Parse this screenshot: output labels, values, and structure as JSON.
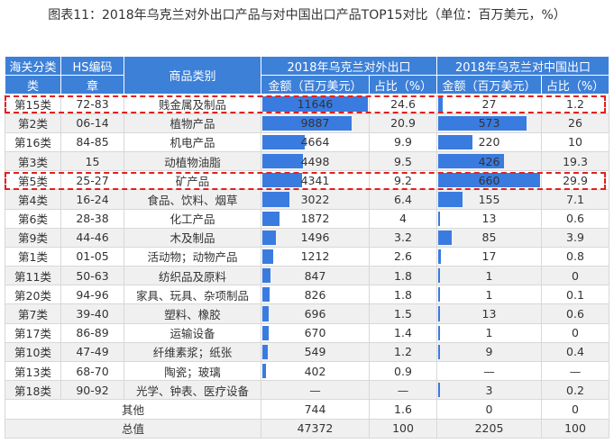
{
  "title": "图表11：2018年乌克兰对外出口产品与对中国出口产品TOP15对比（单位：百万美元，%）",
  "header": {
    "class_top": "海关分类",
    "class_bottom": "类",
    "hs_top": "HS编码",
    "hs_bottom": "章",
    "category": "商品类别",
    "export_group": "2018年乌克兰对外出口",
    "china_group": "2018年乌克兰对中国出口",
    "amount": "金额（百万美元）",
    "share": "占比（%）",
    "amount2": "金额（百万美元）",
    "share2": "占比（%）"
  },
  "colors": {
    "header": "#3d80d8",
    "bar": "#3a7be0",
    "highlight": "#e02020"
  },
  "bar_max": {
    "export": 11646,
    "china": 660
  },
  "rows": [
    {
      "cls": "第15类",
      "hs": "72-83",
      "cat": "贱金属及制品",
      "exp": "11646",
      "exp_share": "24.6",
      "cn": "27",
      "cn_share": "1.2",
      "hl": true
    },
    {
      "cls": "第2类",
      "hs": "06-14",
      "cat": "植物产品",
      "exp": "9887",
      "exp_share": "20.9",
      "cn": "573",
      "cn_share": "26"
    },
    {
      "cls": "第16类",
      "hs": "84-85",
      "cat": "机电产品",
      "exp": "4664",
      "exp_share": "9.9",
      "cn": "220",
      "cn_share": "10"
    },
    {
      "cls": "第3类",
      "hs": "15",
      "cat": "动植物油脂",
      "exp": "4498",
      "exp_share": "9.5",
      "cn": "426",
      "cn_share": "19.3"
    },
    {
      "cls": "第5类",
      "hs": "25-27",
      "cat": "矿产品",
      "exp": "4341",
      "exp_share": "9.2",
      "cn": "660",
      "cn_share": "29.9",
      "hl": true
    },
    {
      "cls": "第4类",
      "hs": "16-24",
      "cat": "食品、饮料、烟草",
      "exp": "3022",
      "exp_share": "6.4",
      "cn": "155",
      "cn_share": "7.1"
    },
    {
      "cls": "第6类",
      "hs": "28-38",
      "cat": "化工产品",
      "exp": "1872",
      "exp_share": "4",
      "cn": "13",
      "cn_share": "0.6"
    },
    {
      "cls": "第9类",
      "hs": "44-46",
      "cat": "木及制品",
      "exp": "1496",
      "exp_share": "3.2",
      "cn": "85",
      "cn_share": "3.9"
    },
    {
      "cls": "第1类",
      "hs": "01-05",
      "cat": "活动物；动物产品",
      "exp": "1212",
      "exp_share": "2.6",
      "cn": "17",
      "cn_share": "0.8"
    },
    {
      "cls": "第11类",
      "hs": "50-63",
      "cat": "纺织品及原料",
      "exp": "847",
      "exp_share": "1.8",
      "cn": "1",
      "cn_share": "0"
    },
    {
      "cls": "第20类",
      "hs": "94-96",
      "cat": "家具、玩具、杂项制品",
      "exp": "826",
      "exp_share": "1.8",
      "cn": "1",
      "cn_share": "0.1"
    },
    {
      "cls": "第7类",
      "hs": "39-40",
      "cat": "塑料、橡胶",
      "exp": "696",
      "exp_share": "1.5",
      "cn": "13",
      "cn_share": "0.6"
    },
    {
      "cls": "第17类",
      "hs": "86-89",
      "cat": "运输设备",
      "exp": "670",
      "exp_share": "1.4",
      "cn": "1",
      "cn_share": "0"
    },
    {
      "cls": "第10类",
      "hs": "47-49",
      "cat": "纤维素浆；纸张",
      "exp": "549",
      "exp_share": "1.2",
      "cn": "9",
      "cn_share": "0.4"
    },
    {
      "cls": "第13类",
      "hs": "68-70",
      "cat": "陶瓷；玻璃",
      "exp": "402",
      "exp_share": "0.9",
      "cn": "—",
      "cn_share": "—"
    },
    {
      "cls": "第18类",
      "hs": "90-92",
      "cat": "光学、钟表、医疗设备",
      "exp": "—",
      "exp_share": "—",
      "cn": "3",
      "cn_share": "0.2"
    }
  ],
  "other": {
    "label": "其他",
    "exp": "744",
    "exp_share": "1.6",
    "cn": "0",
    "cn_share": "0"
  },
  "total": {
    "label": "总值",
    "exp": "47372",
    "exp_share": "100",
    "cn": "2205",
    "cn_share": "100"
  }
}
